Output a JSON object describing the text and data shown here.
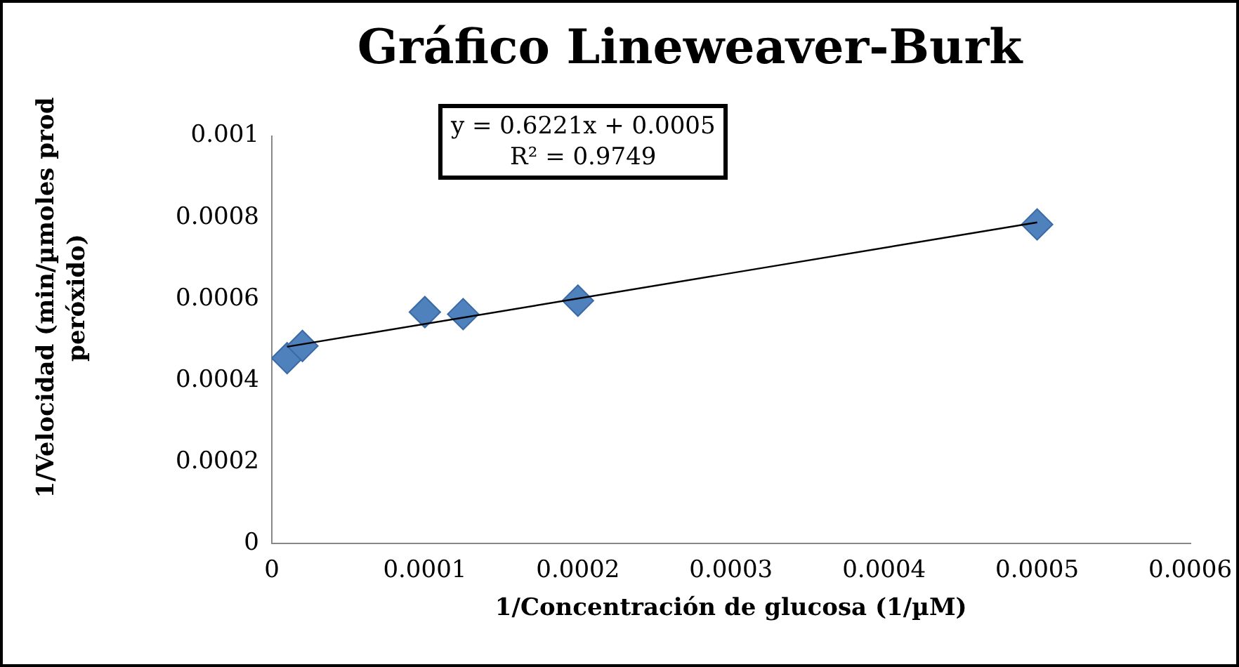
{
  "chart_data": {
    "type": "scatter",
    "title": "Gráfico Lineweaver-Burk",
    "xlabel": "1/Concentración de glucosa (1/µM)",
    "ylabel": "1/Velocidad (min/µmoles prod peróxido)",
    "annotations": [
      "y = 0.6221x + 0.0005",
      "R² = 0.9749"
    ],
    "x": [
      1e-05,
      2e-05,
      0.0001,
      0.000125,
      0.0002,
      0.0005
    ],
    "series": [
      {
        "color": "#4f81bd",
        "values": [
          0.000455,
          0.000485,
          0.000568,
          0.000563,
          0.000596,
          0.000783
        ],
        "marker": "diamond"
      },
      {
        "type": "line",
        "color": "#000000",
        "x": [
          1e-05,
          0.0005
        ],
        "values": [
          0.000483,
          0.000788
        ],
        "marker": "none"
      }
    ],
    "xlim": [
      0,
      0.0006
    ],
    "xticks": [
      0,
      0.0001,
      0.0002,
      0.0003,
      0.0004,
      0.0005,
      0.0006
    ],
    "ylim": [
      0,
      0.001
    ],
    "yticks": [
      0,
      0.0002,
      0.0004,
      0.0006,
      0.0008,
      0.001
    ],
    "grid": false,
    "legend": false
  }
}
